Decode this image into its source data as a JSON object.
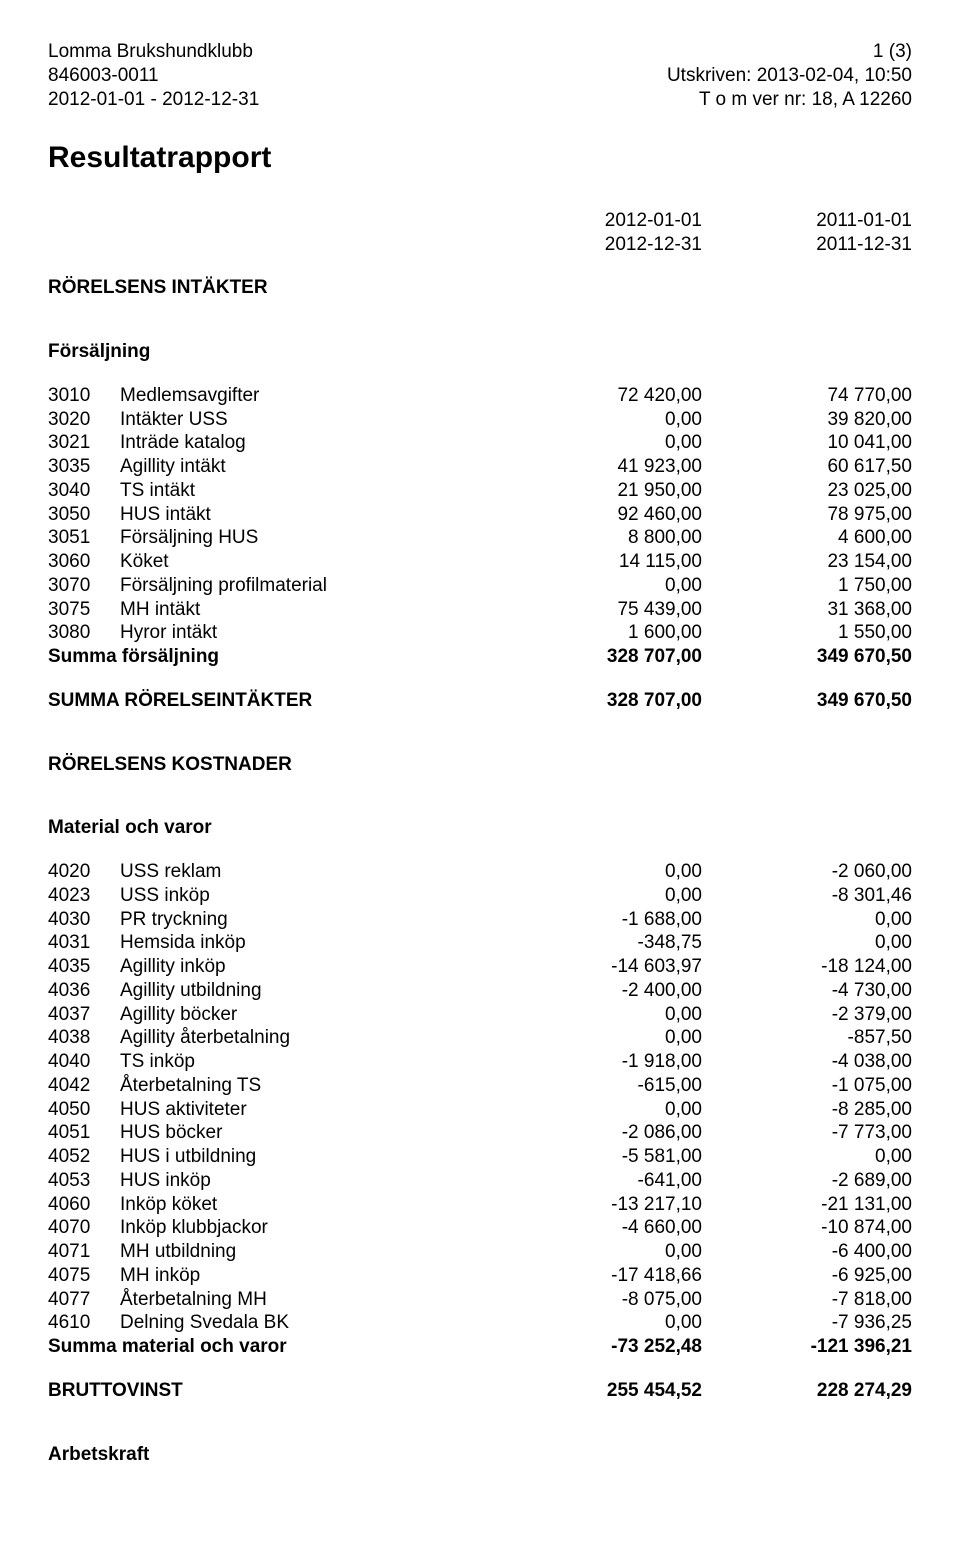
{
  "header": {
    "org_name": "Lomma Brukshundklubb",
    "org_id": "846003-0011",
    "range": "2012-01-01 - 2012-12-31",
    "page": "1 (3)",
    "printed": "Utskriven: 2013-02-04, 10:50",
    "version": "T o m ver nr: 18, A 12260"
  },
  "title": "Resultatrapport",
  "periods": {
    "p1_start": "2012-01-01",
    "p1_end": "2012-12-31",
    "p2_start": "2011-01-01",
    "p2_end": "2011-12-31"
  },
  "s1_heading": "RÖRELSENS INTÄKTER",
  "s2_heading": "Försäljning",
  "t1": {
    "rows": [
      {
        "code": "3010",
        "desc": "Medlemsavgifter",
        "v1": "72 420,00",
        "v2": "74 770,00"
      },
      {
        "code": "3020",
        "desc": "Intäkter USS",
        "v1": "0,00",
        "v2": "39 820,00"
      },
      {
        "code": "3021",
        "desc": "Inträde katalog",
        "v1": "0,00",
        "v2": "10 041,00"
      },
      {
        "code": "3035",
        "desc": "Agillity intäkt",
        "v1": "41 923,00",
        "v2": "60 617,50"
      },
      {
        "code": "3040",
        "desc": "TS intäkt",
        "v1": "21 950,00",
        "v2": "23 025,00"
      },
      {
        "code": "3050",
        "desc": "HUS intäkt",
        "v1": "92 460,00",
        "v2": "78 975,00"
      },
      {
        "code": "3051",
        "desc": "Försäljning HUS",
        "v1": "8 800,00",
        "v2": "4 600,00"
      },
      {
        "code": "3060",
        "desc": "Köket",
        "v1": "14 115,00",
        "v2": "23 154,00"
      },
      {
        "code": "3070",
        "desc": "Försäljning profilmaterial",
        "v1": "0,00",
        "v2": "1 750,00"
      },
      {
        "code": "3075",
        "desc": "MH intäkt",
        "v1": "75 439,00",
        "v2": "31 368,00"
      },
      {
        "code": "3080",
        "desc": "Hyror intäkt",
        "v1": "1 600,00",
        "v2": "1 550,00"
      }
    ],
    "sum_label": "Summa försäljning",
    "sum_v1": "328 707,00",
    "sum_v2": "349 670,50"
  },
  "summa_intakter": {
    "label": "SUMMA RÖRELSEINTÄKTER",
    "v1": "328 707,00",
    "v2": "349 670,50"
  },
  "s3_heading": "RÖRELSENS KOSTNADER",
  "s4_heading": "Material och varor",
  "t2": {
    "rows": [
      {
        "code": "4020",
        "desc": "USS reklam",
        "v1": "0,00",
        "v2": "-2 060,00"
      },
      {
        "code": "4023",
        "desc": "USS inköp",
        "v1": "0,00",
        "v2": "-8 301,46"
      },
      {
        "code": "4030",
        "desc": "PR tryckning",
        "v1": "-1 688,00",
        "v2": "0,00"
      },
      {
        "code": "4031",
        "desc": "Hemsida inköp",
        "v1": "-348,75",
        "v2": "0,00"
      },
      {
        "code": "4035",
        "desc": "Agillity inköp",
        "v1": "-14 603,97",
        "v2": "-18 124,00"
      },
      {
        "code": "4036",
        "desc": "Agillity utbildning",
        "v1": "-2 400,00",
        "v2": "-4 730,00"
      },
      {
        "code": "4037",
        "desc": "Agillity böcker",
        "v1": "0,00",
        "v2": "-2 379,00"
      },
      {
        "code": "4038",
        "desc": "Agillity återbetalning",
        "v1": "0,00",
        "v2": "-857,50"
      },
      {
        "code": "4040",
        "desc": "TS inköp",
        "v1": "-1 918,00",
        "v2": "-4 038,00"
      },
      {
        "code": "4042",
        "desc": "Återbetalning TS",
        "v1": "-615,00",
        "v2": "-1 075,00"
      },
      {
        "code": "4050",
        "desc": "HUS aktiviteter",
        "v1": "0,00",
        "v2": "-8 285,00"
      },
      {
        "code": "4051",
        "desc": "HUS böcker",
        "v1": "-2 086,00",
        "v2": "-7 773,00"
      },
      {
        "code": "4052",
        "desc": "HUS i utbildning",
        "v1": "-5 581,00",
        "v2": "0,00"
      },
      {
        "code": "4053",
        "desc": "HUS inköp",
        "v1": "-641,00",
        "v2": "-2 689,00"
      },
      {
        "code": "4060",
        "desc": "Inköp köket",
        "v1": "-13 217,10",
        "v2": "-21 131,00"
      },
      {
        "code": "4070",
        "desc": "Inköp klubbjackor",
        "v1": "-4 660,00",
        "v2": "-10 874,00"
      },
      {
        "code": "4071",
        "desc": "MH utbildning",
        "v1": "0,00",
        "v2": "-6 400,00"
      },
      {
        "code": "4075",
        "desc": "MH inköp",
        "v1": "-17 418,66",
        "v2": "-6 925,00"
      },
      {
        "code": "4077",
        "desc": "Återbetalning MH",
        "v1": "-8 075,00",
        "v2": "-7 818,00"
      },
      {
        "code": "4610",
        "desc": "Delning Svedala BK",
        "v1": "0,00",
        "v2": "-7 936,25"
      }
    ],
    "sum_label": "Summa material och varor",
    "sum_v1": "-73 252,48",
    "sum_v2": "-121 396,21"
  },
  "bruttovinst": {
    "label": "BRUTTOVINST",
    "v1": "255 454,52",
    "v2": "228 274,29"
  },
  "s5_heading": "Arbetskraft"
}
